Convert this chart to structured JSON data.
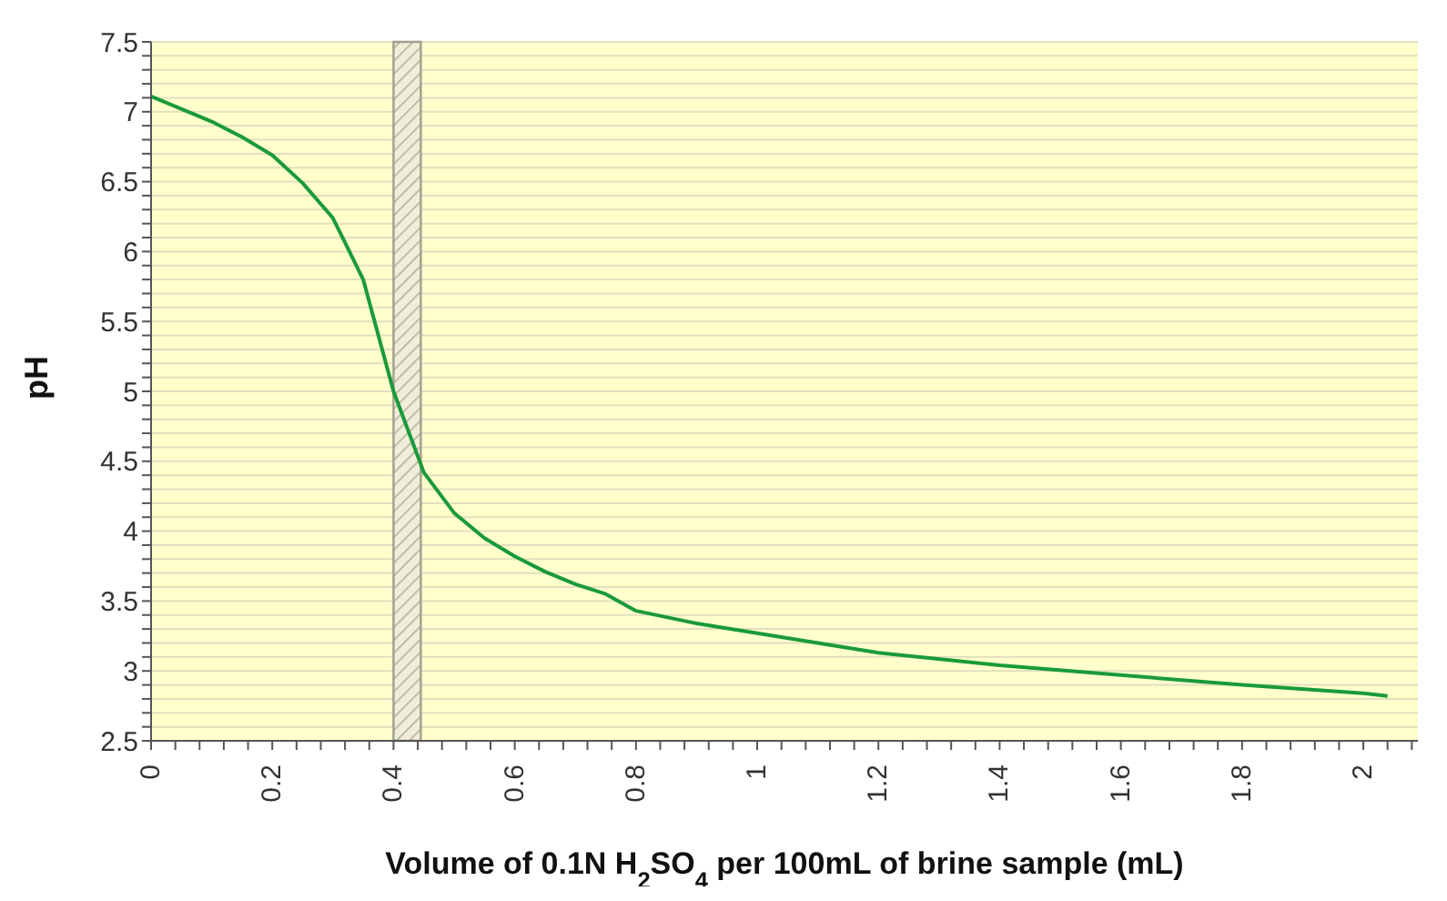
{
  "chart_data": {
    "type": "line",
    "xlabel": "Volume of 0.1N H$_{2}$SO$_{4}$ per 100mL of brine sample (mL)",
    "ylabel": "pH",
    "x": [
      0,
      0.1,
      0.15,
      0.2,
      0.25,
      0.3,
      0.35,
      0.4,
      0.45,
      0.5,
      0.55,
      0.6,
      0.65,
      0.7,
      0.75,
      0.8,
      0.9,
      1.0,
      1.2,
      1.4,
      1.6,
      1.8,
      2.0,
      2.04
    ],
    "series": [
      {
        "color": "#1a9a3a",
        "values": [
          7.11,
          6.93,
          6.82,
          6.69,
          6.49,
          6.24,
          5.8,
          5.0,
          4.42,
          4.13,
          3.95,
          3.82,
          3.71,
          3.62,
          3.55,
          3.43,
          3.34,
          3.27,
          3.13,
          3.04,
          2.97,
          2.9,
          2.84,
          2.82
        ]
      }
    ],
    "xlim": [
      0,
      2.09
    ],
    "xticks": [
      0,
      {
        "value": 0.04,
        "label": null
      },
      {
        "value": 0.08,
        "label": null
      },
      {
        "value": 0.12,
        "label": null
      },
      {
        "value": 0.16,
        "label": null
      },
      0.2,
      {
        "value": 0.24,
        "label": null
      },
      {
        "value": 0.28,
        "label": null
      },
      {
        "value": 0.32,
        "label": null
      },
      {
        "value": 0.36,
        "label": null
      },
      0.4,
      {
        "value": 0.44,
        "label": null
      },
      {
        "value": 0.48,
        "label": null
      },
      {
        "value": 0.52,
        "label": null
      },
      {
        "value": 0.56,
        "label": null
      },
      0.6,
      {
        "value": 0.64,
        "label": null
      },
      {
        "value": 0.68,
        "label": null
      },
      {
        "value": 0.72,
        "label": null
      },
      {
        "value": 0.76,
        "label": null
      },
      0.8,
      {
        "value": 0.84,
        "label": null
      },
      {
        "value": 0.88,
        "label": null
      },
      {
        "value": 0.92,
        "label": null
      },
      {
        "value": 0.96,
        "label": null
      },
      1,
      {
        "value": 1.04,
        "label": null
      },
      {
        "value": 1.08,
        "label": null
      },
      {
        "value": 1.12,
        "label": null
      },
      {
        "value": 1.16,
        "label": null
      },
      1.2,
      {
        "value": 1.24,
        "label": null
      },
      {
        "value": 1.28,
        "label": null
      },
      {
        "value": 1.32,
        "label": null
      },
      {
        "value": 1.36,
        "label": null
      },
      1.4,
      {
        "value": 1.44,
        "label": null
      },
      {
        "value": 1.48,
        "label": null
      },
      {
        "value": 1.52,
        "label": null
      },
      {
        "value": 1.56,
        "label": null
      },
      1.6,
      {
        "value": 1.64,
        "label": null
      },
      {
        "value": 1.68,
        "label": null
      },
      {
        "value": 1.72,
        "label": null
      },
      {
        "value": 1.76,
        "label": null
      },
      1.8,
      {
        "value": 1.84,
        "label": null
      },
      {
        "value": 1.88,
        "label": null
      },
      {
        "value": 1.92,
        "label": null
      },
      {
        "value": 1.96,
        "label": null
      },
      2,
      {
        "value": 2.04,
        "label": null
      },
      {
        "value": 2.08,
        "label": null
      }
    ],
    "ylim": [
      2.5,
      7.5
    ],
    "yticks": [
      2.5,
      {
        "value": 2.6,
        "label": null
      },
      {
        "value": 2.7,
        "label": null
      },
      {
        "value": 2.8,
        "label": null
      },
      {
        "value": 2.9,
        "label": null
      },
      3,
      {
        "value": 3.1,
        "label": null
      },
      {
        "value": 3.2,
        "label": null
      },
      {
        "value": 3.3,
        "label": null
      },
      {
        "value": 3.4,
        "label": null
      },
      3.5,
      {
        "value": 3.6,
        "label": null
      },
      {
        "value": 3.7,
        "label": null
      },
      {
        "value": 3.8,
        "label": null
      },
      {
        "value": 3.9,
        "label": null
      },
      4,
      {
        "value": 4.1,
        "label": null
      },
      {
        "value": 4.2,
        "label": null
      },
      {
        "value": 4.3,
        "label": null
      },
      {
        "value": 4.4,
        "label": null
      },
      4.5,
      {
        "value": 4.6,
        "label": null
      },
      {
        "value": 4.7,
        "label": null
      },
      {
        "value": 4.8,
        "label": null
      },
      {
        "value": 4.9,
        "label": null
      },
      5,
      {
        "value": 5.1,
        "label": null
      },
      {
        "value": 5.2,
        "label": null
      },
      {
        "value": 5.3,
        "label": null
      },
      {
        "value": 5.4,
        "label": null
      },
      5.5,
      {
        "value": 5.6,
        "label": null
      },
      {
        "value": 5.7,
        "label": null
      },
      {
        "value": 5.8,
        "label": null
      },
      {
        "value": 5.9,
        "label": null
      },
      6,
      {
        "value": 6.1,
        "label": null
      },
      {
        "value": 6.2,
        "label": null
      },
      {
        "value": 6.3,
        "label": null
      },
      {
        "value": 6.4,
        "label": null
      },
      6.5,
      {
        "value": 6.6,
        "label": null
      },
      {
        "value": 6.7,
        "label": null
      },
      {
        "value": 6.8,
        "label": null
      },
      {
        "value": 6.9,
        "label": null
      },
      7,
      {
        "value": 7.1,
        "label": null
      },
      {
        "value": 7.2,
        "label": null
      },
      {
        "value": 7.3,
        "label": null
      },
      {
        "value": 7.4,
        "label": null
      },
      7.5
    ],
    "bands": [
      {
        "axis": "x",
        "from": 0.4,
        "to": 0.445,
        "color": "#a0a090"
      }
    ],
    "grid": "y",
    "marker": "none",
    "line_style": "solid"
  }
}
